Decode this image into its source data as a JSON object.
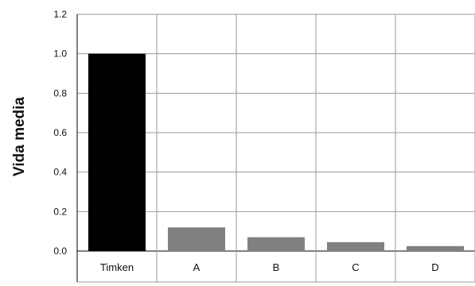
{
  "chart_data": {
    "type": "bar",
    "title": "",
    "xlabel": "",
    "ylabel": "Vida media",
    "categories": [
      "Timken",
      "A",
      "B",
      "C",
      "D"
    ],
    "values": [
      1.0,
      0.12,
      0.07,
      0.045,
      0.025
    ],
    "bar_colors": [
      "#000000",
      "#808080",
      "#808080",
      "#808080",
      "#808080"
    ],
    "ylim": [
      0,
      1.2
    ],
    "yticks": [
      "0.0",
      "0.2",
      "0.4",
      "0.6",
      "0.8",
      "1.0",
      "1.2"
    ],
    "grid": true,
    "legend": "none"
  }
}
